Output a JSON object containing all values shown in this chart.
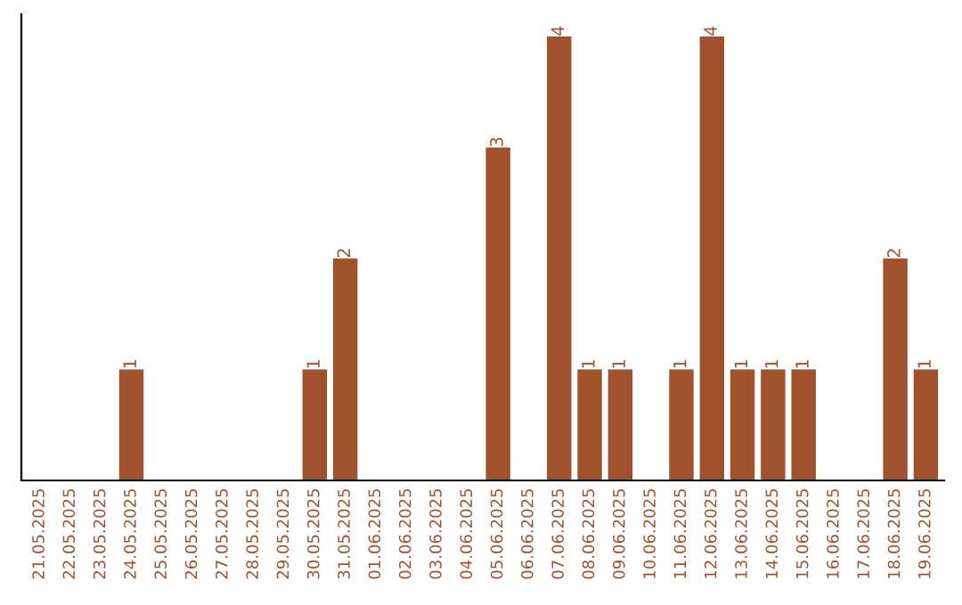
{
  "chart_data": {
    "type": "bar",
    "categories": [
      "21.05.2025",
      "22.05.2025",
      "23.05.2025",
      "24.05.2025",
      "25.05.2025",
      "26.05.2025",
      "27.05.2025",
      "28.05.2025",
      "29.05.2025",
      "30.05.2025",
      "31.05.2025",
      "01.06.2025",
      "02.06.2025",
      "03.06.2025",
      "04.06.2025",
      "05.06.2025",
      "06.06.2025",
      "07.06.2025",
      "08.06.2025",
      "09.06.2025",
      "10.06.2025",
      "11.06.2025",
      "12.06.2025",
      "13.06.2025",
      "14.06.2025",
      "15.06.2025",
      "16.06.2025",
      "17.06.2025",
      "18.06.2025",
      "19.06.2025"
    ],
    "values": [
      0,
      0,
      0,
      1,
      0,
      0,
      0,
      0,
      0,
      1,
      2,
      0,
      0,
      0,
      0,
      3,
      0,
      4,
      1,
      1,
      0,
      1,
      4,
      1,
      1,
      1,
      0,
      0,
      2,
      1
    ],
    "value_labels": [
      null,
      null,
      null,
      "1",
      null,
      null,
      null,
      null,
      null,
      "1",
      "2",
      null,
      null,
      null,
      null,
      "3",
      null,
      "4",
      "1",
      "1",
      null,
      "1",
      "4",
      "1",
      "1",
      "1",
      null,
      null,
      "2",
      "1"
    ],
    "color": "#a0522d",
    "ylim": [
      0,
      4.2
    ],
    "grid": false,
    "legend": false
  }
}
